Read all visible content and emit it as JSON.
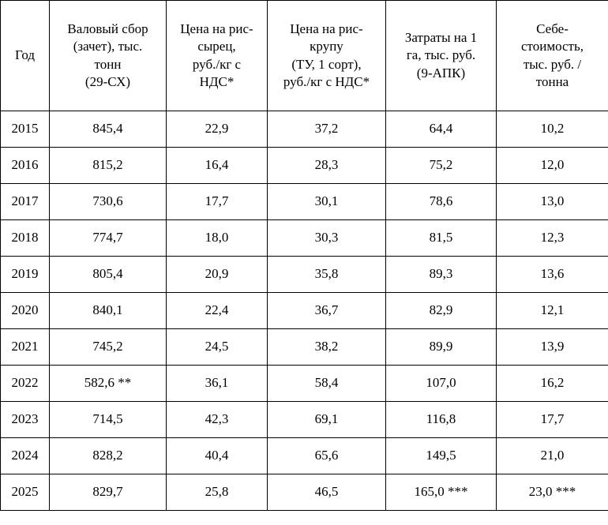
{
  "table": {
    "columns": [
      "Год",
      "Валовый сбор\n(зачет), тыс.\nтонн\n(29-СХ)",
      "Цена на рис-\nсырец,\nруб./кг с\nНДС*",
      "Цена на рис-\nкрупу\n(ТУ, 1 сорт),\nруб./кг с НДС*",
      "Затраты на 1\nга, тыс. руб.\n(9-АПК)",
      "Себе-\nстоимость,\nтыс. руб. /\nтонна"
    ],
    "rows": [
      [
        "2015",
        "845,4",
        "22,9",
        "37,2",
        "64,4",
        "10,2"
      ],
      [
        "2016",
        "815,2",
        "16,4",
        "28,3",
        "75,2",
        "12,0"
      ],
      [
        "2017",
        "730,6",
        "17,7",
        "30,1",
        "78,6",
        "13,0"
      ],
      [
        "2018",
        "774,7",
        "18,0",
        "30,3",
        "81,5",
        "12,3"
      ],
      [
        "2019",
        "805,4",
        "20,9",
        "35,8",
        "89,3",
        "13,6"
      ],
      [
        "2020",
        "840,1",
        "22,4",
        "36,7",
        "82,9",
        "12,1"
      ],
      [
        "2021",
        "745,2",
        "24,5",
        "38,2",
        "89,9",
        "13,9"
      ],
      [
        "2022",
        "582,6 **",
        "36,1",
        "58,4",
        "107,0",
        "16,2"
      ],
      [
        "2023",
        "714,5",
        "42,3",
        "69,1",
        "116,8",
        "17,7"
      ],
      [
        "2024",
        "828,2",
        "40,4",
        "65,6",
        "149,5",
        "21,0"
      ],
      [
        "2025",
        "829,7",
        "25,8",
        "46,5",
        "165,0 ***",
        "23,0 ***"
      ]
    ]
  }
}
